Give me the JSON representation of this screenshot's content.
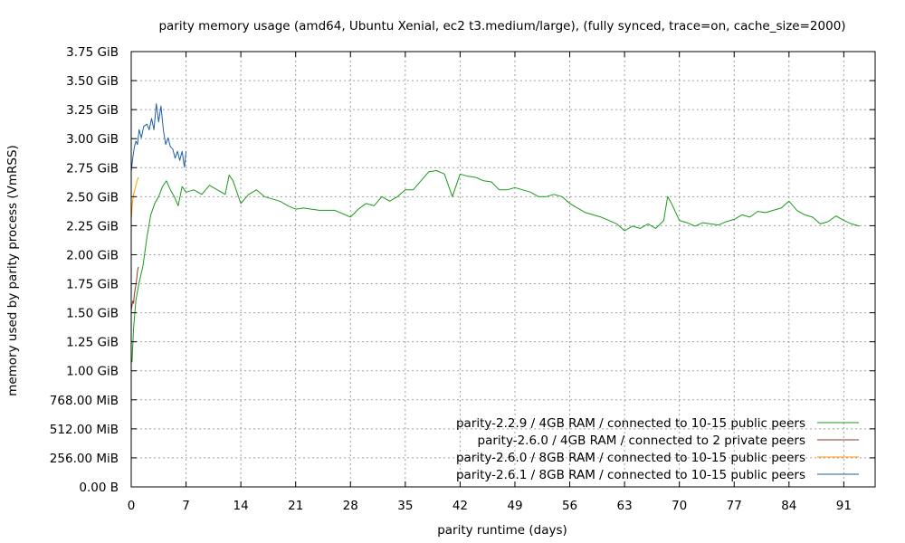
{
  "chart_data": {
    "type": "line",
    "title": "parity memory usage (amd64, Ubuntu Xenial, ec2 t3.medium/large), (fully synced, trace=on, cache_size=2000)",
    "xlabel": "parity runtime (days)",
    "ylabel": "memory used by parity process (VmRSS)",
    "xlim": [
      0,
      95
    ],
    "ylim_mib": [
      0,
      3840
    ],
    "grid": true,
    "legend_position": "bottom-right",
    "x_ticks": [
      0,
      7,
      14,
      21,
      28,
      35,
      42,
      49,
      56,
      63,
      70,
      77,
      84,
      91
    ],
    "y_ticks": [
      {
        "value_mib": 0,
        "label": "0.00   B"
      },
      {
        "value_mib": 256,
        "label": "256.00 MiB"
      },
      {
        "value_mib": 512,
        "label": "512.00 MiB"
      },
      {
        "value_mib": 768,
        "label": "768.00 MiB"
      },
      {
        "value_mib": 1024,
        "label": "1.00 GiB"
      },
      {
        "value_mib": 1280,
        "label": "1.25 GiB"
      },
      {
        "value_mib": 1536,
        "label": "1.50 GiB"
      },
      {
        "value_mib": 1792,
        "label": "1.75 GiB"
      },
      {
        "value_mib": 2048,
        "label": "2.00 GiB"
      },
      {
        "value_mib": 2304,
        "label": "2.25 GiB"
      },
      {
        "value_mib": 2560,
        "label": "2.50 GiB"
      },
      {
        "value_mib": 2816,
        "label": "2.75 GiB"
      },
      {
        "value_mib": 3072,
        "label": "3.00 GiB"
      },
      {
        "value_mib": 3328,
        "label": "3.25 GiB"
      },
      {
        "value_mib": 3584,
        "label": "3.50 GiB"
      },
      {
        "value_mib": 3840,
        "label": "3.75 GiB"
      }
    ],
    "series": [
      {
        "name": "parity-2.2.9 / 4GB RAM / connected to 10-15 public peers",
        "color": "#1a9a1a",
        "x": [
          0.1,
          0.3,
          0.6,
          1.0,
          1.5,
          2.0,
          2.5,
          3.0,
          3.5,
          4.0,
          4.5,
          5.0,
          5.5,
          6.0,
          6.5,
          7.0,
          8.0,
          9.0,
          10.0,
          11.0,
          12.0,
          12.5,
          13.0,
          14.0,
          15.0,
          16.0,
          17.0,
          18.0,
          19.0,
          20.0,
          21.0,
          22.0,
          24.0,
          26.0,
          28.0,
          29.0,
          30.0,
          31.0,
          32.0,
          33.0,
          34.0,
          35.0,
          36.0,
          37.0,
          38.0,
          39.0,
          40.0,
          41.0,
          42.0,
          43.0,
          44.0,
          45.0,
          46.0,
          47.0,
          48.0,
          49.0,
          50.0,
          51.0,
          52.0,
          53.0,
          54.0,
          55.0,
          56.0,
          57.0,
          58.0,
          59.0,
          60.0,
          61.0,
          62.0,
          63.0,
          64.0,
          65.0,
          66.0,
          67.0,
          68.0,
          68.5,
          69.0,
          70.0,
          71.0,
          72.0,
          73.0,
          74.0,
          75.0,
          76.0,
          77.0,
          78.0,
          79.0,
          80.0,
          81.0,
          82.0,
          83.0,
          84.0,
          85.0,
          86.0,
          87.0,
          88.0,
          89.0,
          90.0,
          91.0,
          92.0,
          93.0
        ],
        "y_mib": [
          1100,
          1400,
          1650,
          1800,
          1950,
          2200,
          2400,
          2500,
          2560,
          2650,
          2700,
          2620,
          2560,
          2480,
          2650,
          2600,
          2620,
          2580,
          2660,
          2620,
          2580,
          2750,
          2700,
          2500,
          2580,
          2620,
          2560,
          2540,
          2520,
          2480,
          2450,
          2460,
          2440,
          2440,
          2380,
          2450,
          2500,
          2480,
          2560,
          2520,
          2560,
          2620,
          2620,
          2700,
          2780,
          2790,
          2760,
          2560,
          2760,
          2740,
          2730,
          2700,
          2690,
          2620,
          2620,
          2640,
          2620,
          2600,
          2560,
          2560,
          2580,
          2560,
          2500,
          2460,
          2420,
          2400,
          2380,
          2350,
          2320,
          2260,
          2300,
          2280,
          2320,
          2280,
          2350,
          2560,
          2500,
          2350,
          2330,
          2300,
          2330,
          2320,
          2310,
          2340,
          2360,
          2400,
          2380,
          2430,
          2420,
          2440,
          2460,
          2520,
          2440,
          2400,
          2380,
          2320,
          2340,
          2390,
          2350,
          2320,
          2300
        ]
      },
      {
        "name": "parity-2.6.0 / 4GB RAM / connected to 2 private peers",
        "color": "#8b3a2a",
        "x": [
          0.0,
          0.1,
          0.2,
          0.3,
          0.4,
          0.5,
          0.6,
          0.7,
          0.8,
          0.9
        ],
        "y_mib": [
          1560,
          1600,
          1640,
          1620,
          1700,
          1740,
          1780,
          1840,
          1900,
          1940
        ]
      },
      {
        "name": "parity-2.6.0 / 8GB RAM / connected to 10-15 public peers",
        "color": "#ff9a00",
        "x": [
          0.0,
          0.15,
          0.3,
          0.45,
          0.6,
          0.75,
          0.9
        ],
        "y_mib": [
          2350,
          2500,
          2580,
          2620,
          2660,
          2700,
          2730
        ]
      },
      {
        "name": "parity-2.6.1 / 8GB RAM / connected to 10-15 public peers",
        "color": "#1f5fa6",
        "x": [
          0.0,
          0.2,
          0.4,
          0.6,
          0.8,
          1.0,
          1.3,
          1.6,
          2.0,
          2.3,
          2.6,
          2.9,
          3.2,
          3.5,
          3.8,
          4.1,
          4.4,
          4.7,
          5.0,
          5.3,
          5.6,
          5.9,
          6.2,
          6.5,
          6.8,
          7.0
        ],
        "y_mib": [
          2780,
          2900,
          3000,
          3050,
          3020,
          3150,
          3080,
          3180,
          3200,
          3150,
          3250,
          3150,
          3380,
          3220,
          3360,
          3150,
          3020,
          3080,
          3000,
          2980,
          2900,
          2960,
          2880,
          2960,
          2820,
          2960
        ]
      }
    ]
  }
}
